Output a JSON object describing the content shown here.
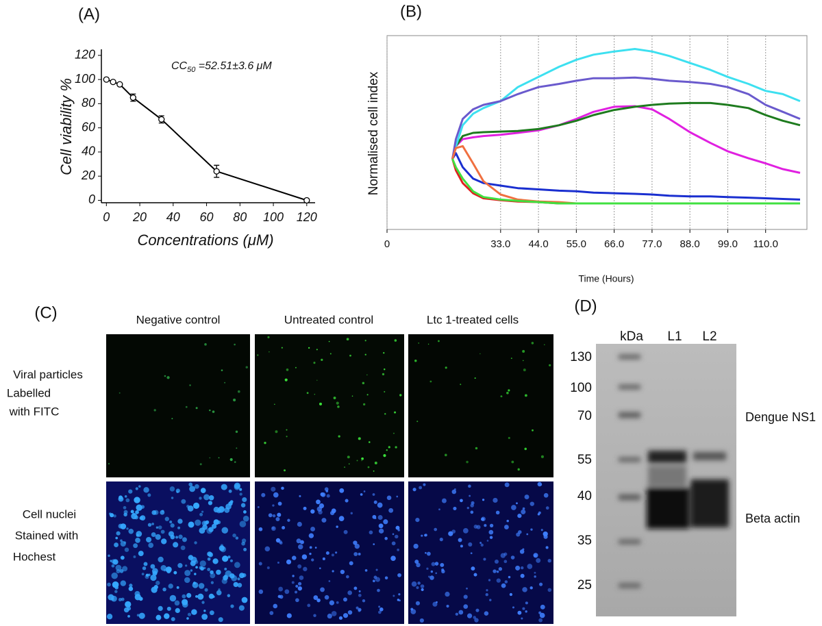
{
  "chart_data": [
    {
      "type": "line",
      "title": "(A)",
      "annotation": {
        "text": "CC",
        "subscript": "50",
        "rest": " =52.51±3.6 μM"
      },
      "x_label": "Concentrations (μM)",
      "y_label": "Cell viability %",
      "x": [
        0,
        4,
        8,
        16,
        33,
        66,
        120
      ],
      "values": [
        100,
        98,
        96,
        85,
        67,
        24,
        0
      ],
      "errors": [
        null,
        null,
        null,
        3,
        3,
        5,
        null
      ],
      "color": "#000000",
      "xlim": [
        -3,
        125
      ],
      "ylim": [
        -2,
        125
      ],
      "xticks": [
        0,
        20,
        40,
        60,
        80,
        100,
        120
      ],
      "yticks": [
        0,
        20,
        40,
        60,
        80,
        100,
        120
      ]
    },
    {
      "type": "line",
      "title": "(B)",
      "x_label": "Time (Hours)",
      "y_label": "Normalised cell index",
      "grid": true,
      "x": [
        19,
        20,
        22,
        25,
        28,
        33,
        38,
        44,
        50,
        55,
        60,
        66,
        72,
        77,
        82,
        88,
        94,
        99,
        105,
        110,
        115,
        120
      ],
      "xlim": [
        0,
        122
      ],
      "ylim": [
        0,
        3.05
      ],
      "xticks": [
        0,
        {
          "value": 33,
          "label": "33.0"
        },
        {
          "value": 44,
          "label": "44.0"
        },
        {
          "value": 55,
          "label": "55.0"
        },
        {
          "value": 66,
          "label": "66.0"
        },
        {
          "value": 77,
          "label": "77.0"
        },
        {
          "value": 88,
          "label": "88.0"
        },
        {
          "value": 99,
          "label": "99.0"
        },
        {
          "value": 110,
          "label": "110.0"
        }
      ],
      "series": [
        {
          "color": "#e020e0",
          "values": [
            1.11,
            1.31,
            1.42,
            1.45,
            1.47,
            1.49,
            1.52,
            1.56,
            1.64,
            1.74,
            1.85,
            1.93,
            1.94,
            1.89,
            1.74,
            1.53,
            1.36,
            1.23,
            1.12,
            1.04,
            0.95,
            0.89
          ]
        },
        {
          "color": "#1e7b1e",
          "values": [
            1.11,
            1.31,
            1.47,
            1.52,
            1.53,
            1.54,
            1.55,
            1.58,
            1.64,
            1.71,
            1.8,
            1.88,
            1.93,
            1.96,
            1.98,
            1.99,
            1.99,
            1.96,
            1.91,
            1.8,
            1.71,
            1.64
          ]
        },
        {
          "color": "#3de0f0",
          "values": [
            1.11,
            1.31,
            1.64,
            1.82,
            1.91,
            2.02,
            2.24,
            2.4,
            2.56,
            2.67,
            2.75,
            2.8,
            2.84,
            2.8,
            2.73,
            2.62,
            2.51,
            2.4,
            2.29,
            2.18,
            2.13,
            2.02
          ]
        },
        {
          "color": "#6a5acd",
          "values": [
            1.11,
            1.42,
            1.74,
            1.89,
            1.96,
            2.02,
            2.13,
            2.24,
            2.29,
            2.34,
            2.38,
            2.38,
            2.39,
            2.37,
            2.34,
            2.32,
            2.29,
            2.24,
            2.13,
            1.96,
            1.85,
            1.74
          ]
        },
        {
          "color": "#1a2fd0",
          "values": [
            1.11,
            1.2,
            0.98,
            0.8,
            0.73,
            0.69,
            0.65,
            0.63,
            0.61,
            0.6,
            0.58,
            0.57,
            0.56,
            0.55,
            0.53,
            0.52,
            0.52,
            0.51,
            0.5,
            0.49,
            0.48,
            0.47
          ]
        },
        {
          "color": "#f07040",
          "values": [
            1.11,
            1.28,
            1.31,
            1.04,
            0.76,
            0.55,
            0.47,
            0.44,
            0.43,
            0.41,
            0.41,
            0.41,
            0.41,
            0.41,
            0.41,
            0.41,
            0.41,
            0.41,
            0.41,
            0.41,
            0.41,
            0.41
          ]
        },
        {
          "color": "#e02020",
          "values": [
            1.11,
            0.93,
            0.73,
            0.57,
            0.49,
            0.46,
            0.44,
            0.43,
            0.41,
            0.41,
            0.41,
            0.41,
            0.41,
            0.41,
            0.41,
            0.41,
            0.41,
            0.41,
            0.41,
            0.41,
            0.41,
            0.41
          ]
        },
        {
          "color": "#40e040",
          "values": [
            1.11,
            0.98,
            0.8,
            0.6,
            0.51,
            0.47,
            0.45,
            0.43,
            0.41,
            0.41,
            0.41,
            0.41,
            0.41,
            0.41,
            0.41,
            0.41,
            0.41,
            0.41,
            0.41,
            0.41,
            0.41,
            0.41
          ]
        }
      ]
    }
  ],
  "panel_c": {
    "label": "(C)",
    "columns": [
      "Negative control",
      "Untreated control",
      "Ltc 1-treated cells"
    ],
    "rows": [
      [
        "Viral particles",
        "Labelled",
        "with FITC"
      ],
      [
        "Cell nuclei",
        "Stained with",
        "Hochest"
      ]
    ]
  },
  "panel_d": {
    "label": "(D)",
    "lanes": [
      "kDa",
      "L1",
      "L2"
    ],
    "markers": [
      "130",
      "100",
      "70",
      "55",
      "40",
      "35",
      "25"
    ],
    "bands": [
      "Dengue NS1",
      "Beta actin"
    ]
  }
}
